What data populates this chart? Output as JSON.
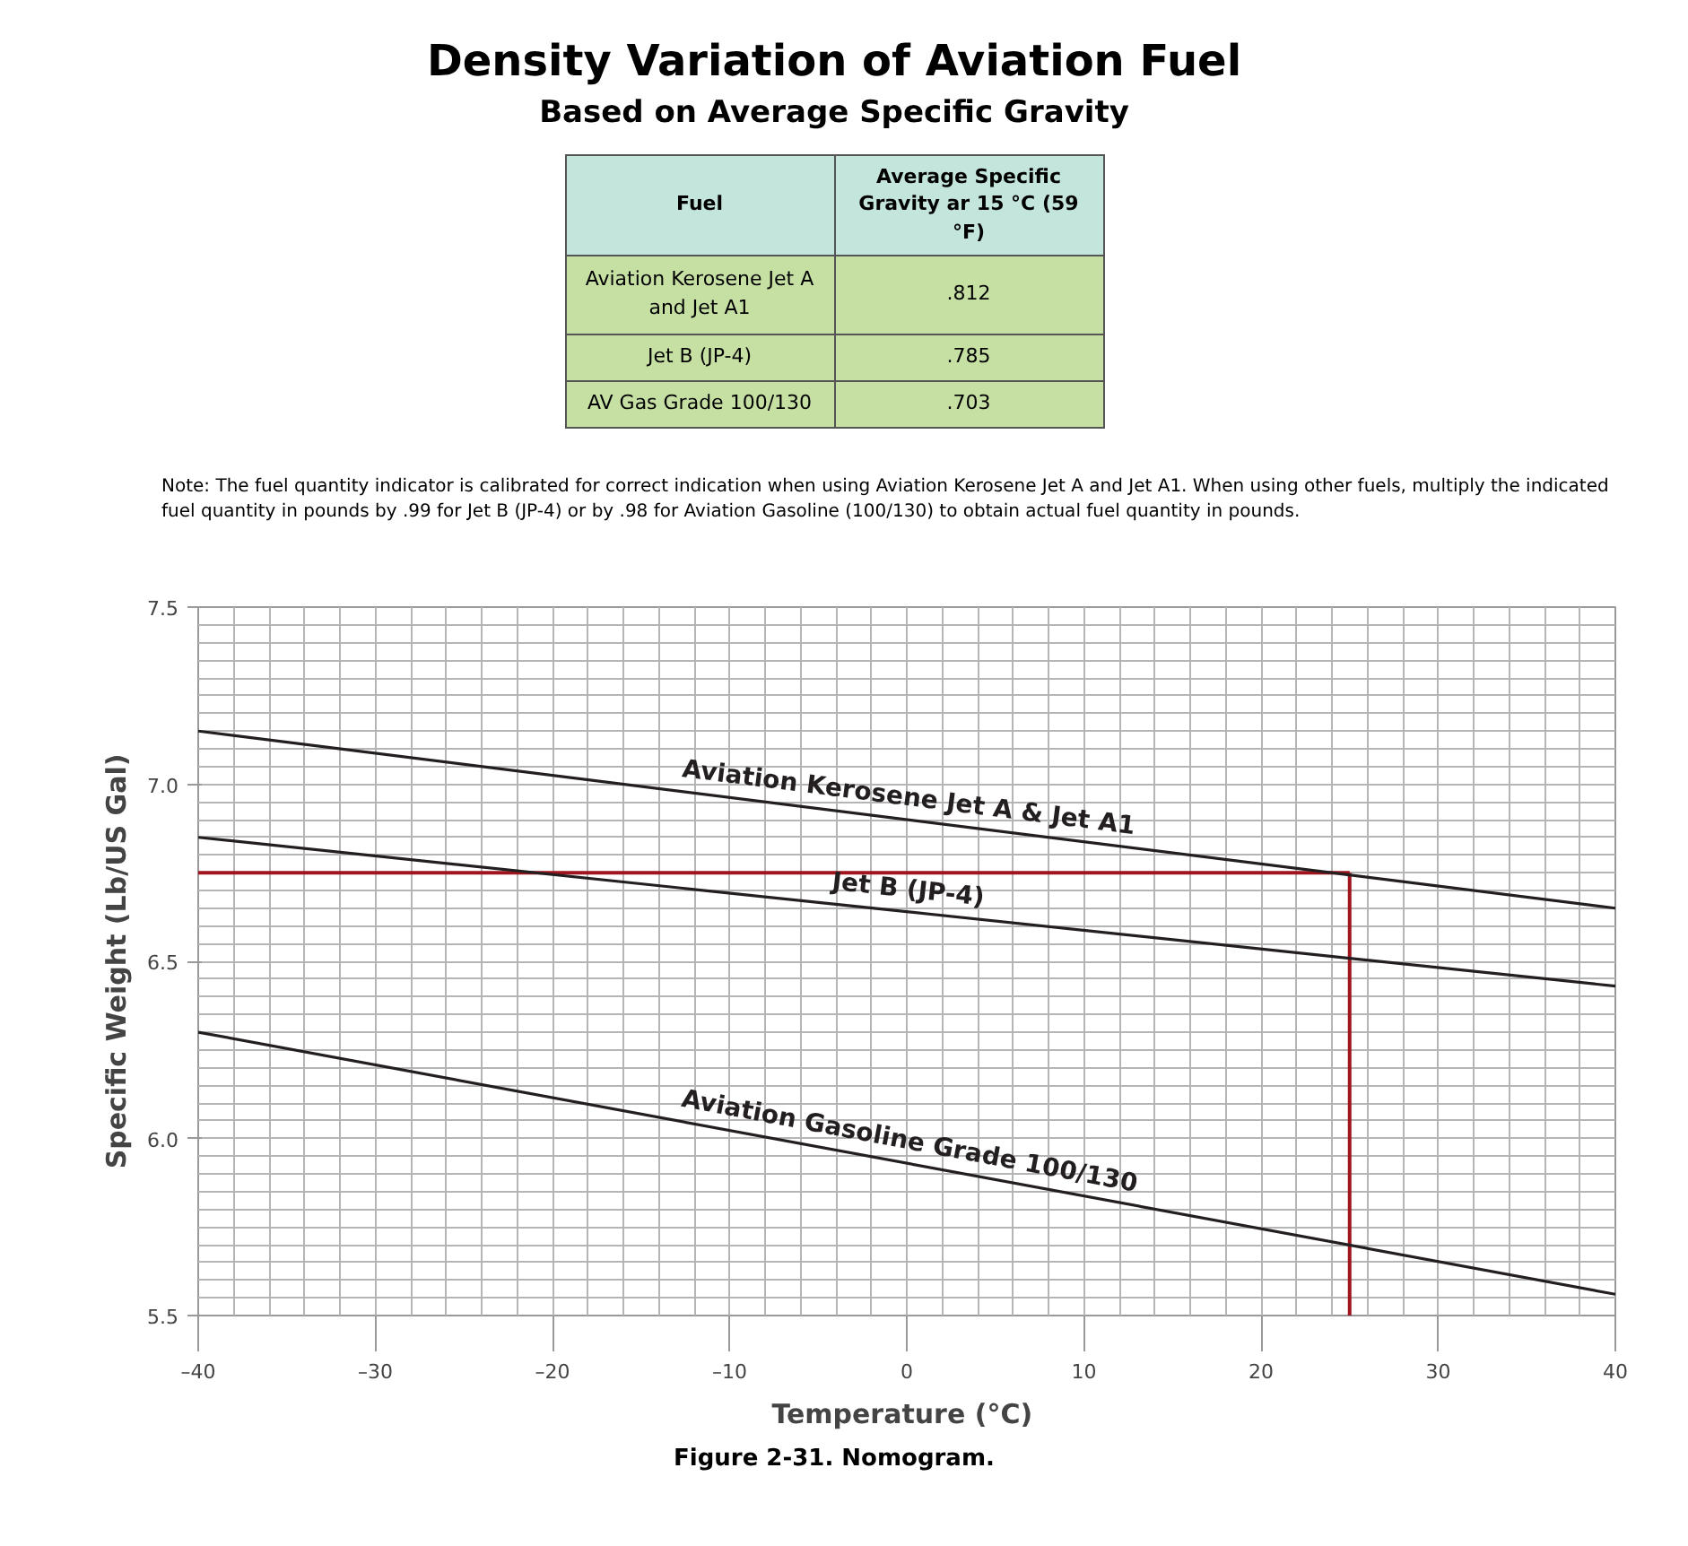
{
  "chart_data": {
    "type": "line",
    "title": "Density Variation of Aviation Fuel",
    "subtitle": "Based on Average Specific Gravity",
    "xlabel": "Temperature  (°C)",
    "ylabel": "Specific Weight (Lb/US Gal)",
    "annotations": [
      "Fuel",
      "Average Specific Gravity ar 15 °C (59 °F)",
      "Aviation Kerosene Jet A and Jet A1",
      ".812",
      "Jet B (JP-4)",
      ".785",
      "AV Gas Grade 100/130",
      ".703",
      "Note: The fuel quantity indicator is calibrated for correct indication when using Aviation Kerosene Jet A and Jet A1. When using other fuels, multiply the indicated fuel quantity in pounds by .99 for Jet B (JP-4) or by .98 for Aviation Gasoline (100/130) to obtain actual fuel quantity in pounds.",
      "Figure 2-31. Nomogram."
    ],
    "x": [
      -40,
      40
    ],
    "series": [
      {
        "name": "Aviation Kerosene Jet A & Jet A1",
        "color": "#231f20",
        "values": [
          7.15,
          6.65
        ]
      },
      {
        "name": "Jet B (JP-4)",
        "color": "#231f20",
        "values": [
          6.85,
          6.43
        ]
      },
      {
        "name": "Aviation Gasoline Grade 100/130",
        "color": "#231f20",
        "values": [
          6.3,
          5.56
        ]
      }
    ],
    "ref_lines": [
      {
        "axis": "y",
        "value": 6.75,
        "color": "#a0141e"
      },
      {
        "axis": "x",
        "value": 25,
        "color": "#a0141e"
      }
    ],
    "xlim": [
      -40,
      40
    ],
    "ylim": [
      5.5,
      7.5
    ],
    "xticks": [
      {
        "value": -40,
        "label": "–40"
      },
      {
        "value": -30,
        "label": "–30"
      },
      {
        "value": -20,
        "label": "–20"
      },
      {
        "value": -10,
        "label": "–10"
      },
      0,
      10,
      20,
      30,
      40
    ],
    "yticks": [
      5.5,
      {
        "value": 6,
        "label": "6.0"
      },
      6.5,
      {
        "value": 7,
        "label": "7.0"
      },
      7.5
    ],
    "grid": true,
    "legend": false,
    "marker": "none",
    "line_style": "solid"
  }
}
